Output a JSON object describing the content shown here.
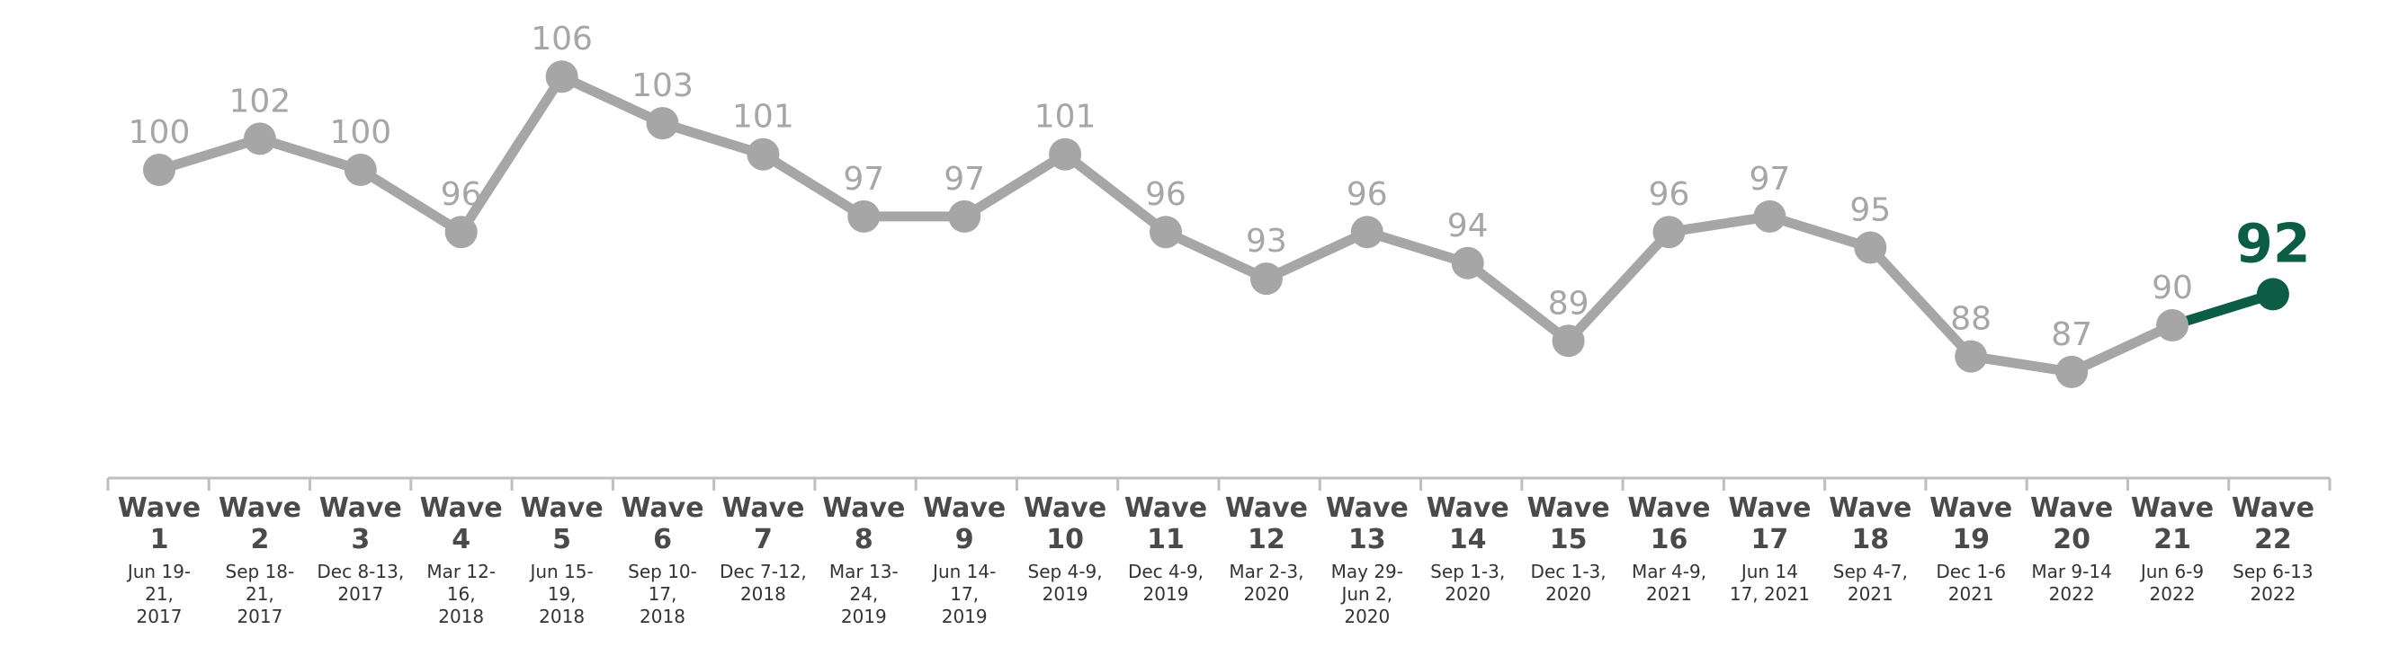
{
  "chart_data": {
    "type": "line",
    "categories": [
      {
        "wave": "Wave 1",
        "dates": [
          "Jun 19-",
          "21,",
          "2017"
        ]
      },
      {
        "wave": "Wave 2",
        "dates": [
          "Sep 18-",
          "21,",
          "2017"
        ]
      },
      {
        "wave": "Wave 3",
        "dates": [
          "Dec 8-13,",
          "2017"
        ]
      },
      {
        "wave": "Wave 4",
        "dates": [
          "Mar 12-",
          "16,",
          "2018"
        ]
      },
      {
        "wave": "Wave 5",
        "dates": [
          "Jun 15-",
          "19,",
          "2018"
        ]
      },
      {
        "wave": "Wave 6",
        "dates": [
          "Sep 10-",
          "17,",
          "2018"
        ]
      },
      {
        "wave": "Wave 7",
        "dates": [
          "Dec 7-12,",
          "2018"
        ]
      },
      {
        "wave": "Wave 8",
        "dates": [
          "Mar 13-",
          "24,",
          "2019"
        ]
      },
      {
        "wave": "Wave 9",
        "dates": [
          "Jun 14-",
          "17,",
          "2019"
        ]
      },
      {
        "wave": "Wave 10",
        "dates": [
          "Sep 4-9,",
          "2019"
        ]
      },
      {
        "wave": "Wave 11",
        "dates": [
          "Dec 4-9,",
          "2019"
        ]
      },
      {
        "wave": "Wave 12",
        "dates": [
          "Mar 2-3,",
          "2020"
        ]
      },
      {
        "wave": "Wave 13",
        "dates": [
          "May 29-",
          "Jun 2,",
          "2020"
        ]
      },
      {
        "wave": "Wave 14",
        "dates": [
          "Sep 1-3,",
          "2020"
        ]
      },
      {
        "wave": "Wave 15",
        "dates": [
          "Dec 1-3,",
          "2020"
        ]
      },
      {
        "wave": "Wave 16",
        "dates": [
          "Mar 4-9,",
          "2021"
        ]
      },
      {
        "wave": "Wave 17",
        "dates": [
          "Jun 14",
          "17, 2021"
        ]
      },
      {
        "wave": "Wave 18",
        "dates": [
          "Sep 4-7,",
          "2021"
        ]
      },
      {
        "wave": "Wave 19",
        "dates": [
          "Dec 1-6",
          "2021"
        ]
      },
      {
        "wave": "Wave 20",
        "dates": [
          "Mar 9-14",
          "2022"
        ]
      },
      {
        "wave": "Wave 21",
        "dates": [
          "Jun 6-9",
          "2022"
        ]
      },
      {
        "wave": "Wave 22",
        "dates": [
          "Sep 6-13",
          "2022"
        ]
      }
    ],
    "values": [
      100,
      102,
      100,
      96,
      106,
      103,
      101,
      97,
      97,
      101,
      96,
      93,
      96,
      94,
      89,
      96,
      97,
      95,
      88,
      87,
      90,
      92
    ],
    "ylim": [
      80,
      108
    ],
    "grid": false,
    "legend": "none",
    "colors": {
      "line": "#a6a6a6",
      "highlight": "#0b5e45",
      "axis": "#bfbfbf",
      "wave_text": "#4a4a4a",
      "date_text": "#333333"
    }
  }
}
